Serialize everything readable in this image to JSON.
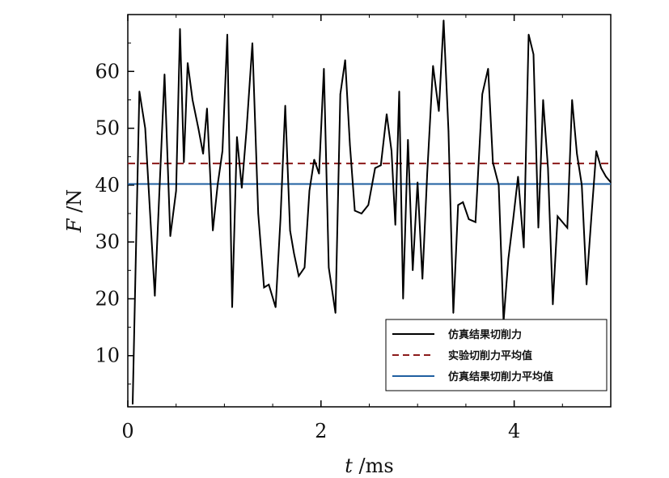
{
  "chart_data": {
    "type": "line",
    "xlabel": {
      "var": "t",
      "unit": " /ms"
    },
    "ylabel": {
      "var": "F",
      "unit": " /N"
    },
    "xlim": [
      0,
      5
    ],
    "ylim": [
      1,
      70
    ],
    "xticks": [
      0,
      2,
      4
    ],
    "yticks": [
      10,
      20,
      30,
      40,
      50,
      60
    ],
    "grid": false,
    "legend_position": "bottom-right",
    "series": [
      {
        "name": "仿真结果切削力",
        "style": "solid",
        "color": "#000000",
        "x": [
          0.05,
          0.12,
          0.18,
          0.28,
          0.38,
          0.44,
          0.5,
          0.54,
          0.58,
          0.62,
          0.67,
          0.73,
          0.78,
          0.82,
          0.88,
          0.93,
          0.98,
          1.03,
          1.08,
          1.13,
          1.18,
          1.23,
          1.29,
          1.35,
          1.41,
          1.46,
          1.53,
          1.58,
          1.63,
          1.68,
          1.72,
          1.77,
          1.83,
          1.88,
          1.93,
          1.98,
          2.03,
          2.08,
          2.15,
          2.2,
          2.25,
          2.3,
          2.35,
          2.42,
          2.49,
          2.56,
          2.62,
          2.68,
          2.73,
          2.77,
          2.81,
          2.85,
          2.9,
          2.95,
          3.0,
          3.05,
          3.1,
          3.16,
          3.22,
          3.27,
          3.32,
          3.37,
          3.42,
          3.47,
          3.53,
          3.6,
          3.67,
          3.73,
          3.78,
          3.84,
          3.89,
          3.94,
          3.99,
          4.04,
          4.1,
          4.15,
          4.2,
          4.25,
          4.3,
          4.35,
          4.4,
          4.45,
          4.5,
          4.55,
          4.6,
          4.65,
          4.7,
          4.75,
          4.8,
          4.85,
          4.9,
          4.95,
          5.0
        ],
        "values": [
          1.5,
          56.5,
          50,
          20.5,
          59.5,
          31,
          39,
          67.5,
          44,
          61.5,
          55,
          50,
          45.5,
          53.5,
          32,
          40,
          46,
          66.5,
          18.5,
          48.5,
          39.5,
          50,
          65,
          35,
          22,
          22.5,
          18.5,
          34,
          54,
          32,
          28,
          24,
          25.5,
          39,
          44.5,
          42,
          60.5,
          25.5,
          17.5,
          56,
          62,
          47,
          35.5,
          35,
          36.5,
          43,
          43.5,
          52.5,
          46,
          33,
          56.5,
          20,
          48,
          25,
          40.5,
          23.5,
          42,
          61,
          53,
          69,
          49.5,
          17.5,
          36.5,
          37,
          34,
          33.5,
          56,
          60.5,
          44,
          40,
          16,
          27,
          34,
          41.5,
          29,
          66.5,
          63,
          32.5,
          55,
          43,
          19,
          34.5,
          33.5,
          32.5,
          55,
          45.5,
          40,
          22.5,
          34.5,
          46,
          43,
          41.5,
          40.5
        ]
      },
      {
        "name": "实验切削力平均值",
        "style": "dashed",
        "color": "#8b1a1a",
        "constant": 43.8
      },
      {
        "name": "仿真结果切削力平均值",
        "style": "solid",
        "color": "#1f5fa0",
        "constant": 40.2
      }
    ]
  }
}
